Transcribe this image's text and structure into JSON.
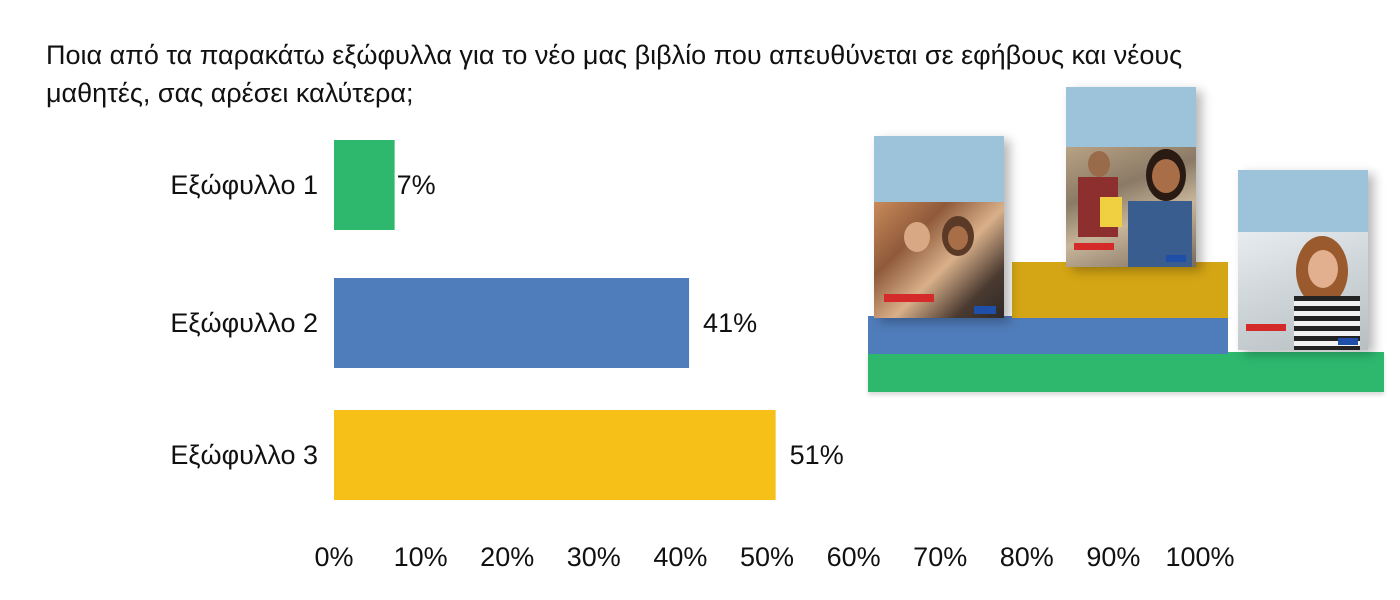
{
  "chart_data": {
    "type": "bar",
    "orientation": "horizontal",
    "title": "Ποια από τα παρακάτω εξώφυλλα για το νέο μας βιβλίο που απευθύνεται σε εφήβους και νέους\nμαθητές, σας αρέσει καλύτερα;",
    "categories": [
      "Εξώφυλλο 1",
      "Εξώφυλλο 2",
      "Εξώφυλλο 3"
    ],
    "values": [
      7,
      41,
      51
    ],
    "value_labels": [
      "7%",
      "41%",
      "51%"
    ],
    "colors": [
      "#2db86e",
      "#4f7cba",
      "#f6c018"
    ],
    "xlim": [
      0,
      100
    ],
    "x_ticks": [
      0,
      10,
      20,
      30,
      40,
      50,
      60,
      70,
      80,
      90,
      100
    ],
    "x_tick_labels": [
      "0%",
      "10%",
      "20%",
      "30%",
      "40%",
      "50%",
      "60%",
      "70%",
      "80%",
      "90%",
      "100%"
    ],
    "grid": false,
    "legend": "none"
  },
  "illustration": {
    "type": "book covers on a podium",
    "podium_colors": [
      "#2db86e",
      "#4f7cba",
      "#d4a514"
    ],
    "cover_background": "#9cc3d9"
  }
}
